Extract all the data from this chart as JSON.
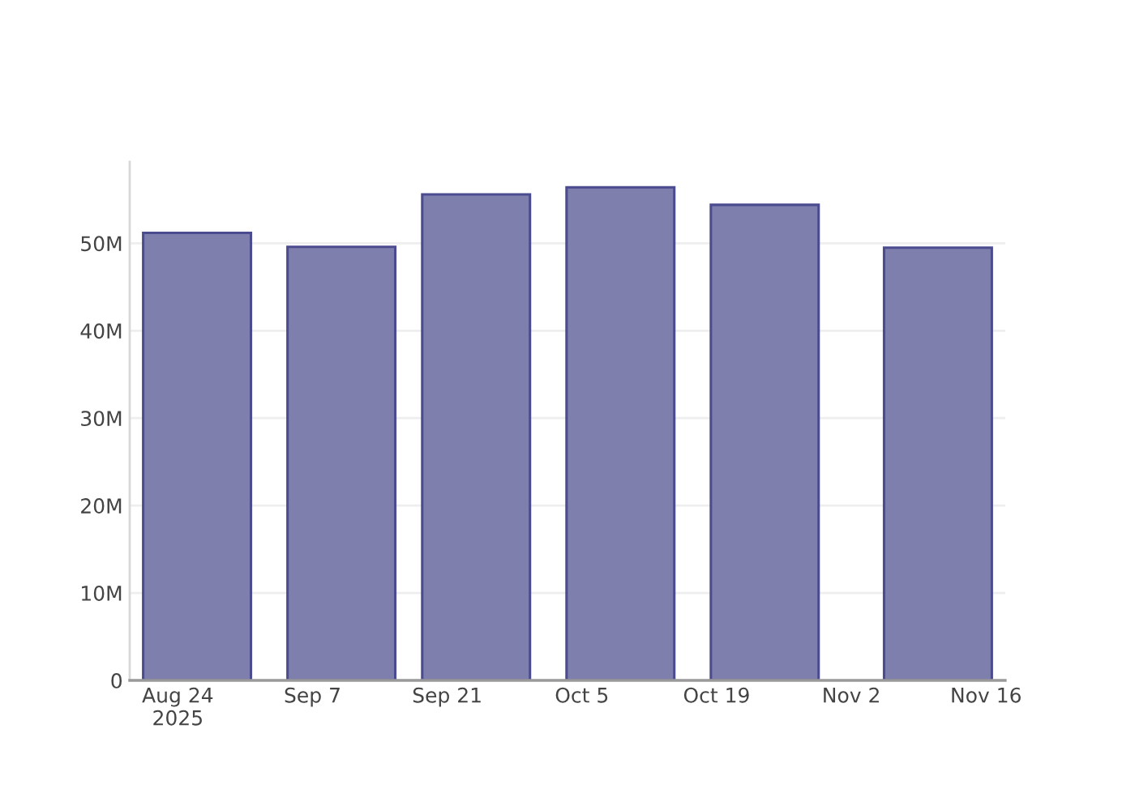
{
  "chart_data": {
    "type": "bar",
    "x": [
      "2025-08-26",
      "2025-09-10",
      "2025-09-24",
      "2025-10-09",
      "2025-10-24",
      "2025-11-11"
    ],
    "values": [
      51200000,
      49600000,
      55600000,
      56400000,
      54400000,
      49500000
    ],
    "color": "#7f7fad",
    "xlim": [
      "2025-08-19",
      "2025-11-18"
    ],
    "xticks": [
      {
        "value": "2025-08-24",
        "label": "Aug 24\n2025"
      },
      {
        "value": "2025-09-07",
        "label": "Sep 7"
      },
      {
        "value": "2025-09-21",
        "label": "Sep 21"
      },
      {
        "value": "2025-10-05",
        "label": "Oct 5"
      },
      {
        "value": "2025-10-19",
        "label": "Oct 19"
      },
      {
        "value": "2025-11-02",
        "label": "Nov 2"
      },
      {
        "value": "2025-11-16",
        "label": "Nov 16"
      }
    ],
    "ylim": [
      0,
      59300000
    ],
    "yticks": [
      0,
      {
        "value": 10000000,
        "label": "10M"
      },
      {
        "value": 20000000,
        "label": "20M"
      },
      {
        "value": 30000000,
        "label": "30M"
      },
      {
        "value": 40000000,
        "label": "40M"
      },
      {
        "value": 50000000,
        "label": "50M"
      }
    ],
    "grid": "y"
  }
}
